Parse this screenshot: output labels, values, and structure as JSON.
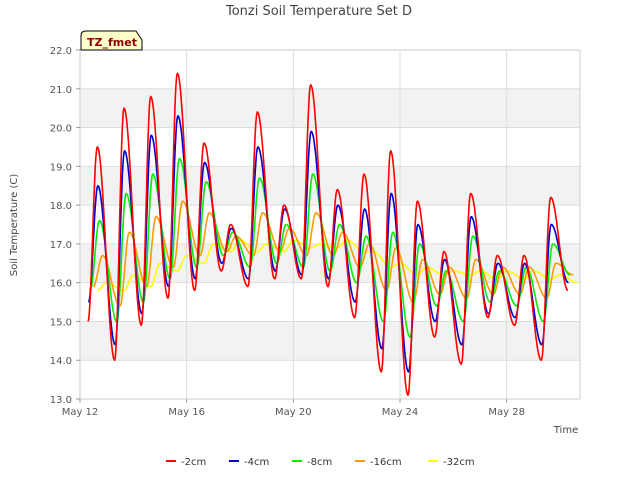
{
  "chart_data": {
    "type": "line",
    "title": "Tonzi Soil Temperature Set D",
    "xlabel": "Time",
    "ylabel": "Soil Temperature (C)",
    "tag": "TZ_fmet",
    "ylim": [
      13.0,
      22.0
    ],
    "xlim": [
      "May 12",
      "May 30.75"
    ],
    "yticks": [
      "13.0",
      "14.0",
      "15.0",
      "16.0",
      "17.0",
      "18.0",
      "19.0",
      "20.0",
      "21.0",
      "22.0"
    ],
    "xticks": [
      {
        "day": 12,
        "label": "May 12"
      },
      {
        "day": 16,
        "label": "May 16"
      },
      {
        "day": 20,
        "label": "May 20"
      },
      {
        "day": 24,
        "label": "May 24"
      },
      {
        "day": 28,
        "label": "May 28"
      }
    ],
    "grid": true,
    "legend_position": "bottom",
    "series": [
      {
        "name": "-2cm",
        "color": "#ff0000",
        "mins": [
          15.0,
          14.0,
          14.9,
          15.6,
          15.8,
          16.3,
          15.9,
          16.1,
          16.1,
          15.9,
          15.1,
          13.7,
          13.1,
          14.6,
          13.9,
          15.1,
          14.9,
          14.0,
          15.8
        ],
        "maxs": [
          19.5,
          20.5,
          20.8,
          21.4,
          19.6,
          17.5,
          20.4,
          18.0,
          21.1,
          18.4,
          18.8,
          19.4,
          18.1,
          16.8,
          18.3,
          16.7,
          16.7,
          18.2
        ]
      },
      {
        "name": "-4cm",
        "color": "#0000cc",
        "mins": [
          15.5,
          14.4,
          15.2,
          15.9,
          16.1,
          16.5,
          16.1,
          16.3,
          16.2,
          16.1,
          15.5,
          14.3,
          13.7,
          15.0,
          14.4,
          15.2,
          15.1,
          14.4,
          16.0
        ],
        "maxs": [
          18.5,
          19.4,
          19.8,
          20.3,
          19.1,
          17.4,
          19.5,
          17.9,
          19.9,
          18.0,
          17.9,
          18.3,
          17.5,
          16.6,
          17.7,
          16.5,
          16.5,
          17.5
        ]
      },
      {
        "name": "-8cm",
        "color": "#00ee00",
        "mins": [
          15.8,
          15.0,
          15.5,
          16.1,
          16.4,
          16.7,
          16.4,
          16.5,
          16.4,
          16.3,
          16.0,
          15.0,
          14.6,
          15.4,
          15.0,
          15.5,
          15.4,
          15.0,
          16.2
        ],
        "maxs": [
          17.6,
          18.3,
          18.8,
          19.2,
          18.6,
          17.3,
          18.7,
          17.5,
          18.8,
          17.5,
          17.2,
          17.3,
          17.0,
          16.3,
          17.2,
          16.3,
          16.4,
          17.0
        ]
      },
      {
        "name": "-16cm",
        "color": "#ff9900",
        "mins": [
          15.9,
          15.4,
          15.9,
          16.4,
          16.7,
          16.8,
          16.7,
          16.8,
          16.7,
          16.7,
          16.4,
          15.8,
          15.5,
          15.7,
          15.6,
          15.7,
          15.7,
          15.6,
          16.2
        ],
        "maxs": [
          16.7,
          17.3,
          17.7,
          18.1,
          17.8,
          17.2,
          17.8,
          17.4,
          17.8,
          17.3,
          17.0,
          16.9,
          16.6,
          16.4,
          16.6,
          16.4,
          16.4,
          16.5
        ]
      },
      {
        "name": "-32cm",
        "color": "#ffff00",
        "mins": [
          15.8,
          15.8,
          15.9,
          16.3,
          16.5,
          16.8,
          16.8,
          16.8,
          16.9,
          16.9,
          16.8,
          16.4,
          16.2,
          16.2,
          16.2,
          16.1,
          16.1,
          16.1,
          16.0
        ],
        "maxs": [
          16.0,
          16.2,
          16.5,
          16.7,
          17.0,
          17.1,
          17.0,
          17.1,
          17.0,
          17.1,
          16.8,
          16.5,
          16.4,
          16.3,
          16.3,
          16.3,
          16.3,
          16.2
        ]
      }
    ]
  }
}
